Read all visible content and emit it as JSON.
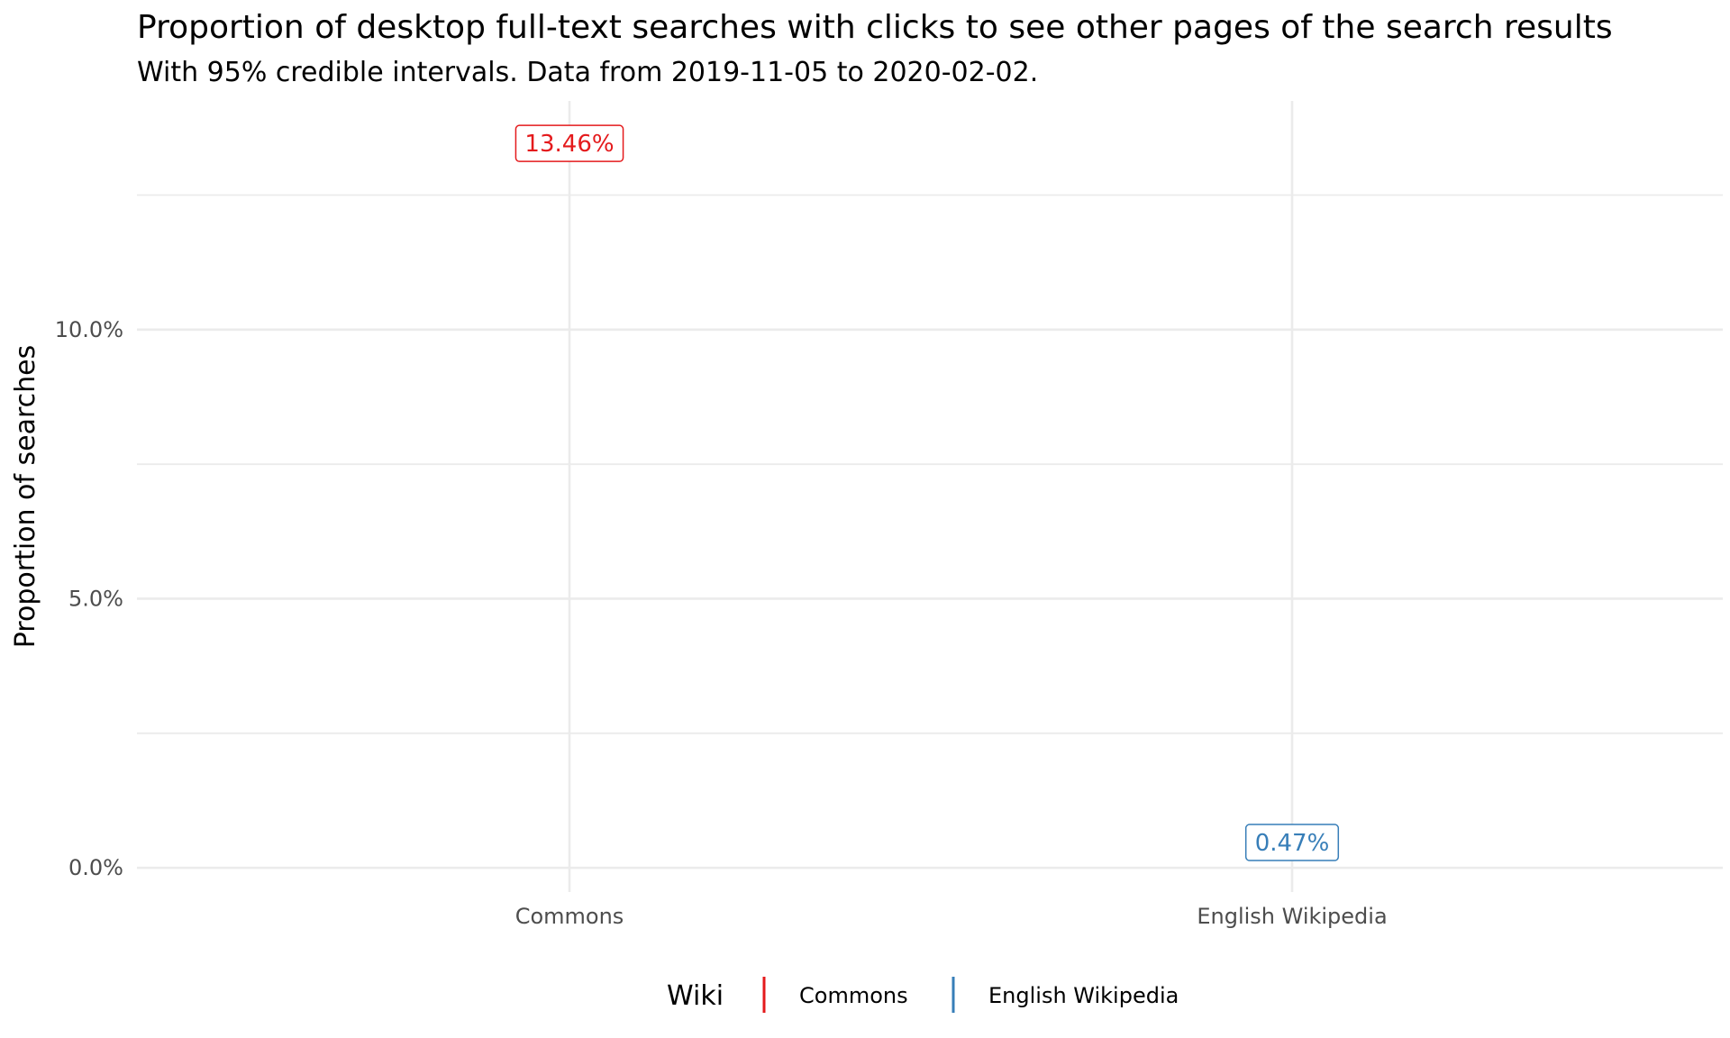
{
  "chart_data": {
    "type": "errorbar",
    "title": "Proportion of desktop full-text searches with clicks to see other pages of the search results",
    "subtitle": "With 95% credible intervals. Data from 2019-11-05 to 2020-02-02.",
    "xlabel": "",
    "ylabel": "Proportion of searches",
    "ylim": [
      -0.0045,
      0.1425
    ],
    "y_ticks": [
      0.0,
      0.05,
      0.1
    ],
    "y_tick_labels": [
      "0.0%",
      "5.0%",
      "10.0%"
    ],
    "y_minor_ticks": [
      0.025,
      0.075,
      0.125
    ],
    "categories": [
      "Commons",
      "English Wikipedia"
    ],
    "series": [
      {
        "name": "Commons",
        "category": "Commons",
        "value": 0.1346,
        "lower": 0.1331,
        "upper": 0.1361,
        "label": "13.46%",
        "color": "#e41a1c"
      },
      {
        "name": "English Wikipedia",
        "category": "English Wikipedia",
        "value": 0.0047,
        "lower": 0.0046,
        "upper": 0.0048,
        "label": "0.47%",
        "color": "#377eb8"
      }
    ],
    "grid": true,
    "legend": {
      "title": "Wiki",
      "position": "bottom",
      "items": [
        {
          "label": "Commons",
          "color": "#e41a1c"
        },
        {
          "label": "English Wikipedia",
          "color": "#377eb8"
        }
      ]
    }
  }
}
